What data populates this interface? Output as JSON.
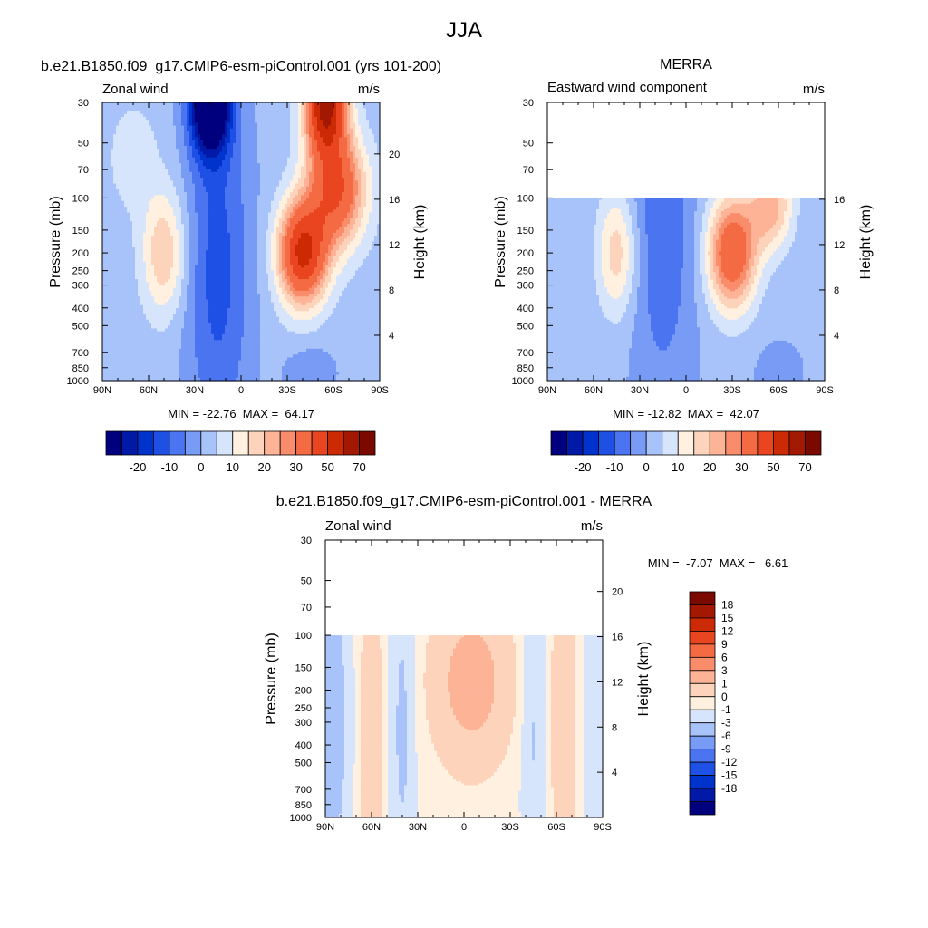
{
  "figure": {
    "title": "JJA"
  },
  "colors": {
    "wind": [
      "#00007f",
      "#0019a6",
      "#0032cc",
      "#1e50e6",
      "#4b74f0",
      "#789bf5",
      "#a8c2fa",
      "#d6e5fc",
      "#fff0e0",
      "#fdd4bb",
      "#fcb396",
      "#f98c6a",
      "#f46a43",
      "#e84520",
      "#cc2a05",
      "#a31800",
      "#7a0a00"
    ],
    "diff": [
      "#00007f",
      "#0019a6",
      "#0032cc",
      "#1e50e6",
      "#4b74f0",
      "#789bf5",
      "#a8c2fa",
      "#d6e5fc",
      "#fff0e0",
      "#fdd4bb",
      "#fcb396",
      "#f98c6a",
      "#f46a43",
      "#e84520",
      "#cc2a05",
      "#a31800",
      "#7a0a00"
    ]
  },
  "chart_data": [
    {
      "type": "contour",
      "id": "model",
      "title": "b.e21.B1850.f09_g17.CMIP6-esm-piControl.001 (yrs 101-200)",
      "left_label": "Zonal wind",
      "units": "m/s",
      "ylabel": "Pressure (mb)",
      "ylabel_right": "Height (km)",
      "x_ticks": [
        "90N",
        "60N",
        "30N",
        "0",
        "30S",
        "60S",
        "90S"
      ],
      "p_ticks": [
        "30",
        "50",
        "70",
        "100",
        "150",
        "200",
        "250",
        "300",
        "400",
        "500",
        "700",
        "850",
        "1000"
      ],
      "z_ticks": [
        "4",
        "8",
        "12",
        "16",
        "20"
      ],
      "ptop": 30,
      "stats": "MIN = -22.76  MAX =  64.17",
      "min": -22.76,
      "max": 64.17,
      "levels": [
        -25,
        -20,
        -15,
        -10,
        -5,
        0,
        5,
        10,
        15,
        20,
        25,
        30,
        40,
        50,
        60,
        70
      ],
      "cbar_labels": [
        "-20",
        "-10",
        "0",
        "10",
        "20",
        "30",
        "50",
        "70"
      ],
      "cbar_label_idx": [
        1,
        3,
        5,
        7,
        9,
        11,
        13,
        15
      ],
      "centers": [
        {
          "lat": 50,
          "p": 200,
          "v": 18,
          "slat": 10,
          "sp": 0.55
        },
        {
          "lat": -40,
          "p": 200,
          "v": 50,
          "slat": 11,
          "sp": 0.45
        },
        {
          "lat": -55,
          "p": 30,
          "v": 62,
          "slat": 9,
          "sp": 0.45
        },
        {
          "lat": -62,
          "p": 90,
          "v": 38,
          "slat": 13,
          "sp": 0.5
        },
        {
          "lat": 20,
          "p": 30,
          "v": -45,
          "slat": 9,
          "sp": 0.45
        },
        {
          "lat": 15,
          "p": 250,
          "v": -14,
          "slat": 15,
          "sp": 1.6
        },
        {
          "lat": -45,
          "p": 900,
          "v": -6,
          "slat": 12,
          "sp": 0.25
        },
        {
          "lat": 70,
          "p": 60,
          "v": 6,
          "slat": 12,
          "sp": 0.5
        }
      ],
      "background": 2
    },
    {
      "type": "contour",
      "id": "obs",
      "title": "MERRA",
      "left_label": "Eastward wind component",
      "units": "m/s",
      "ylabel": "Pressure (mb)",
      "ylabel_right": "Height (km)",
      "x_ticks": [
        "90N",
        "60N",
        "30N",
        "0",
        "30S",
        "60S",
        "90S"
      ],
      "p_ticks": [
        "30",
        "50",
        "70",
        "100",
        "150",
        "200",
        "250",
        "300",
        "400",
        "500",
        "700",
        "850",
        "1000"
      ],
      "z_ticks": [
        "4",
        "8",
        "12",
        "16"
      ],
      "ptop": 100,
      "stats": "MIN = -12.82  MAX =  42.07",
      "min": -12.82,
      "max": 42.07,
      "levels": [
        -25,
        -20,
        -15,
        -10,
        -5,
        0,
        5,
        10,
        15,
        20,
        25,
        30,
        40,
        50,
        60,
        70
      ],
      "cbar_labels": [
        "-20",
        "-10",
        "0",
        "10",
        "20",
        "30",
        "50",
        "70"
      ],
      "cbar_label_idx": [
        1,
        3,
        5,
        7,
        9,
        11,
        13,
        15
      ],
      "centers": [
        {
          "lat": 45,
          "p": 200,
          "v": 17,
          "slat": 9,
          "sp": 0.55
        },
        {
          "lat": -30,
          "p": 200,
          "v": 38,
          "slat": 11,
          "sp": 0.5
        },
        {
          "lat": -55,
          "p": 110,
          "v": 22,
          "slat": 10,
          "sp": 0.4
        },
        {
          "lat": 15,
          "p": 150,
          "v": -10,
          "slat": 14,
          "sp": 1.5
        },
        {
          "lat": -60,
          "p": 900,
          "v": -4,
          "slat": 10,
          "sp": 0.25
        }
      ],
      "background": 1
    },
    {
      "type": "contour",
      "id": "diff",
      "title": "b.e21.B1850.f09_g17.CMIP6-esm-piControl.001 - MERRA",
      "left_label": "Zonal wind",
      "units": "m/s",
      "ylabel": "Pressure (mb)",
      "ylabel_right": "Height (km)",
      "x_ticks": [
        "90N",
        "60N",
        "30N",
        "0",
        "30S",
        "60S",
        "90S"
      ],
      "p_ticks": [
        "30",
        "50",
        "70",
        "100",
        "150",
        "200",
        "250",
        "300",
        "400",
        "500",
        "700",
        "850",
        "1000"
      ],
      "z_ticks": [
        "4",
        "8",
        "12",
        "16",
        "20"
      ],
      "ptop": 100,
      "stats": "MIN =  -7.07  MAX =   6.61",
      "min": -7.07,
      "max": 6.61,
      "levels": [
        -18,
        -15,
        -12,
        -9,
        -6,
        -3,
        -1,
        0,
        1,
        3,
        6,
        9,
        12,
        15,
        18
      ],
      "cbar_labels": [
        "18",
        "15",
        "12",
        "9",
        "6",
        "3",
        "1",
        "0",
        "-1",
        "-3",
        "-6",
        "-9",
        "-12",
        "-15",
        "-18"
      ],
      "centers": [
        {
          "lat": -5,
          "p": 180,
          "v": 4,
          "slat": 17,
          "sp": 0.7
        },
        {
          "lat": 60,
          "p": 350,
          "v": 2.2,
          "slat": 5,
          "sp": 1.5
        },
        {
          "lat": 40,
          "p": 300,
          "v": -1.6,
          "slat": 6,
          "sp": 1.6
        },
        {
          "lat": 85,
          "p": 300,
          "v": -2,
          "slat": 8,
          "sp": 1.6
        },
        {
          "lat": -45,
          "p": 300,
          "v": -1.5,
          "slat": 6,
          "sp": 1.3
        },
        {
          "lat": -65,
          "p": 300,
          "v": 2.2,
          "slat": 6,
          "sp": 1.5
        },
        {
          "lat": -85,
          "p": 300,
          "v": -1,
          "slat": 7,
          "sp": 1.5
        }
      ],
      "background": 0.3
    }
  ]
}
